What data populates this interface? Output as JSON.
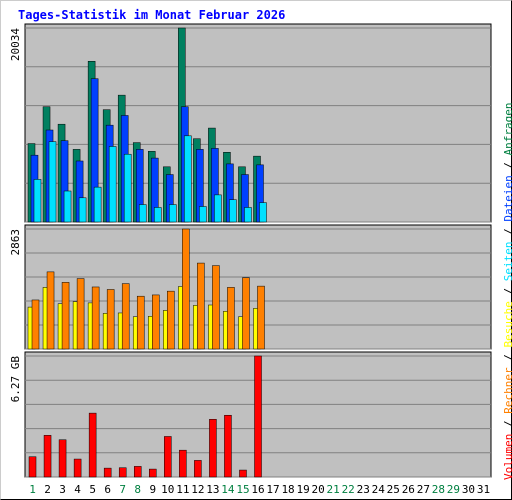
{
  "title": "Tages-Statistik im Monat Februar 2026",
  "legend": [
    {
      "label": "Volumen",
      "color": "#ff0000"
    },
    {
      "sep": " / "
    },
    {
      "label": "Rechner",
      "color": "#ff8000"
    },
    {
      "sep": " / "
    },
    {
      "label": "Besuche",
      "color": "#ffff00"
    },
    {
      "sep": " / "
    },
    {
      "label": "Seiten",
      "color": "#00e0ff"
    },
    {
      "sep": " / "
    },
    {
      "label": "Dateien",
      "color": "#0040ff"
    },
    {
      "sep": " / "
    },
    {
      "label": "Anfragen",
      "color": "#008040"
    }
  ],
  "chart_data": [
    {
      "type": "bar",
      "panel": "top",
      "ymax_label": "20034",
      "ylim": [
        0,
        20034
      ],
      "categories": [
        "1",
        "2",
        "3",
        "4",
        "5",
        "6",
        "7",
        "8",
        "9",
        "10",
        "11",
        "12",
        "13",
        "14",
        "15",
        "16"
      ],
      "series": [
        {
          "name": "Anfragen",
          "color": "#008060",
          "values": [
            8100,
            11900,
            10100,
            7500,
            16600,
            11600,
            13100,
            8200,
            7300,
            5700,
            20034,
            8600,
            9700,
            7200,
            5700,
            6800
          ]
        },
        {
          "name": "Dateien",
          "color": "#0040ff",
          "values": [
            6900,
            9500,
            8400,
            6300,
            14800,
            10000,
            11000,
            7500,
            6600,
            4900,
            11900,
            7500,
            7600,
            6000,
            4900,
            5900
          ]
        },
        {
          "name": "Seiten",
          "color": "#00e0ff",
          "values": [
            4400,
            8300,
            3200,
            2500,
            3600,
            7800,
            7000,
            1800,
            1500,
            1800,
            8900,
            1600,
            2800,
            2300,
            1500,
            2000
          ]
        }
      ]
    },
    {
      "type": "bar",
      "panel": "middle",
      "ymax_label": "2863",
      "ylim": [
        0,
        2863
      ],
      "categories": [
        "1",
        "2",
        "3",
        "4",
        "5",
        "6",
        "7",
        "8",
        "9",
        "10",
        "11",
        "12",
        "13",
        "14",
        "15",
        "16"
      ],
      "series": [
        {
          "name": "Besuche",
          "color": "#ffff00",
          "values": [
            1000,
            1470,
            1080,
            1130,
            1100,
            850,
            860,
            770,
            780,
            920,
            1490,
            1040,
            1050,
            900,
            770,
            970
          ]
        },
        {
          "name": "Rechner",
          "color": "#ff8000",
          "values": [
            1170,
            1840,
            1590,
            1680,
            1480,
            1420,
            1560,
            1260,
            1290,
            1380,
            2863,
            2050,
            1990,
            1470,
            1700,
            1500
          ]
        }
      ]
    },
    {
      "type": "bar",
      "panel": "bottom",
      "ymax_label": "6.27 GB",
      "ylim": [
        0,
        6.27
      ],
      "unit": "GB",
      "categories": [
        "1",
        "2",
        "3",
        "4",
        "5",
        "6",
        "7",
        "8",
        "9",
        "10",
        "11",
        "12",
        "13",
        "14",
        "15",
        "16"
      ],
      "series": [
        {
          "name": "Volumen",
          "color": "#ff0000",
          "values": [
            1.05,
            2.16,
            1.93,
            0.93,
            3.31,
            0.46,
            0.48,
            0.55,
            0.41,
            2.1,
            1.39,
            0.86,
            2.99,
            3.2,
            0.36,
            6.27
          ]
        }
      ]
    }
  ],
  "x_axis": {
    "days": [
      "1",
      "2",
      "3",
      "4",
      "5",
      "6",
      "7",
      "8",
      "9",
      "10",
      "11",
      "12",
      "13",
      "14",
      "15",
      "16",
      "17",
      "18",
      "19",
      "20",
      "21",
      "22",
      "23",
      "24",
      "25",
      "26",
      "27",
      "28"
    ],
    "overflow_days": [
      "29",
      "30",
      "31"
    ],
    "weekend_days": [
      "1",
      "7",
      "8",
      "14",
      "15",
      "21",
      "22",
      "28",
      "29"
    ],
    "weekday_color": "#000000",
    "weekend_color": "#008040"
  },
  "colors": {
    "panel_bg": "#c0c0c0",
    "grid": "#808080",
    "bar_border": "#000000"
  }
}
